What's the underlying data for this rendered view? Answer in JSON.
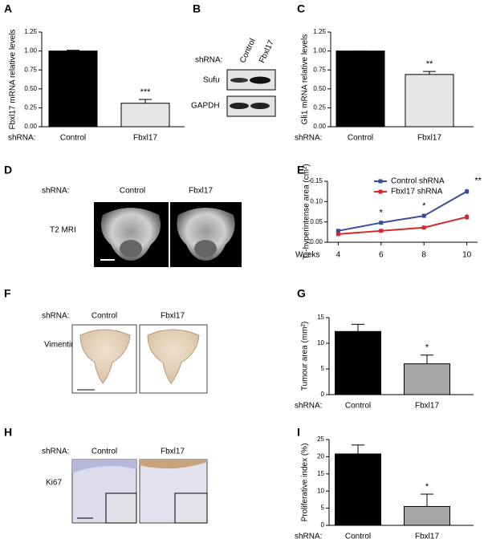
{
  "chart_data": [
    {
      "type": "bar",
      "panel": "A",
      "ylabel": "Fbxl17 mRNA relative levels",
      "shrna_label": "shRNA:",
      "categories": [
        "Control",
        "Fbxl17"
      ],
      "values": [
        1.0,
        0.31
      ],
      "errors": [
        0.01,
        0.05
      ],
      "colors": [
        "#000000",
        "#e6e6e6"
      ],
      "significance": [
        null,
        "***"
      ],
      "ylim": [
        0,
        1.25
      ],
      "yticks": [
        {
          "value": 0,
          "label": "0.00"
        },
        0.25,
        {
          "value": 0.5,
          "label": "0.50"
        },
        0.75,
        {
          "value": 1,
          "label": "1.00"
        },
        1.25
      ]
    },
    {
      "type": "bar",
      "panel": "C",
      "ylabel": "Gli1 mRNA relative levels",
      "shrna_label": "shRNA:",
      "categories": [
        "Control",
        "Fbxl17"
      ],
      "values": [
        1.0,
        0.69
      ],
      "errors": [
        0.0,
        0.04
      ],
      "colors": [
        "#000000",
        "#e6e6e6"
      ],
      "significance": [
        null,
        "**"
      ],
      "ylim": [
        0,
        1.25
      ],
      "yticks": [
        {
          "value": 0,
          "label": "0.00"
        },
        0.25,
        {
          "value": 0.5,
          "label": "0.50"
        },
        0.75,
        {
          "value": 1,
          "label": "1.00"
        },
        1.25
      ]
    },
    {
      "type": "line",
      "panel": "E",
      "ylabel": "T₂-hyperintense area (cm²)",
      "xlabel": "Weeks",
      "x": [
        4,
        6,
        8,
        10
      ],
      "xlim": [
        3.5,
        10.5
      ],
      "xticks": [
        4,
        6,
        8,
        10
      ],
      "ylim": [
        0,
        0.15
      ],
      "yticks": [
        {
          "value": 0,
          "label": "0.00"
        },
        0.05,
        {
          "value": 0.1,
          "label": "0.10"
        },
        0.15
      ],
      "series": [
        {
          "name": "Control shRNA",
          "color": "#3b4aa0",
          "values": [
            0.028,
            0.048,
            0.065,
            0.125
          ],
          "errors": [
            0.003,
            0.004,
            0.004,
            0.006
          ]
        },
        {
          "name": "Fbxl17 shRNA",
          "color": "#d7262b",
          "values": [
            0.02,
            0.028,
            0.036,
            0.062
          ],
          "errors": [
            0.002,
            0.003,
            0.003,
            0.007
          ]
        }
      ],
      "significance": [
        null,
        "*",
        "*",
        "**"
      ]
    },
    {
      "type": "bar",
      "panel": "G",
      "ylabel": "Tumour area (mm²)",
      "shrna_label": "shRNA:",
      "categories": [
        "Control",
        "Fbxl17"
      ],
      "values": [
        12.3,
        6.0
      ],
      "errors": [
        1.4,
        1.7
      ],
      "colors": [
        "#000000",
        "#a6a6a6"
      ],
      "significance": [
        null,
        "*"
      ],
      "ylim": [
        0,
        15
      ],
      "yticks": [
        0,
        5,
        10,
        15
      ]
    },
    {
      "type": "bar",
      "panel": "I",
      "ylabel": "Proliferative index (%)",
      "shrna_label": "shRNA:",
      "categories": [
        "Control",
        "Fbxl17"
      ],
      "values": [
        20.8,
        5.5
      ],
      "errors": [
        2.6,
        3.6
      ],
      "colors": [
        "#000000",
        "#a6a6a6"
      ],
      "significance": [
        null,
        "*"
      ],
      "ylim": [
        0,
        25
      ],
      "yticks": [
        0,
        5,
        10,
        15,
        20,
        25
      ]
    }
  ],
  "panels": {
    "B": {
      "letter": "B",
      "shrna_label": "shRNA:",
      "columns": [
        "Control",
        "Fbxl17"
      ],
      "rows": [
        "Sufu",
        "GAPDH"
      ]
    },
    "D": {
      "letter": "D",
      "shrna_label": "shRNA:",
      "columns": [
        "Control",
        "Fbxl17"
      ],
      "row_label": "T2 MRI"
    },
    "F": {
      "letter": "F",
      "shrna_label": "shRNA:",
      "columns": [
        "Control",
        "Fbxl17"
      ],
      "row_label": "Vimentin"
    },
    "H": {
      "letter": "H",
      "shrna_label": "shRNA:",
      "columns": [
        "Control",
        "Fbxl17"
      ],
      "row_label": "Ki67"
    }
  }
}
